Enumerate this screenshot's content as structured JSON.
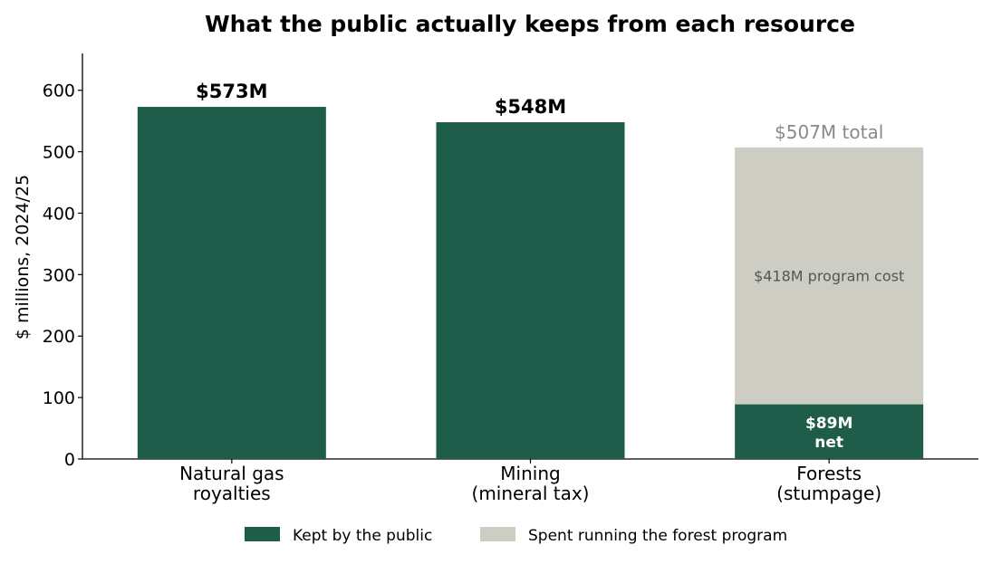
{
  "chart_data": {
    "type": "bar",
    "title": "What the public actually keeps from each resource",
    "ylabel": "$ millions, 2024/25",
    "xlabel": "",
    "ylim": [
      0,
      660
    ],
    "yticks": [
      0,
      100,
      200,
      300,
      400,
      500,
      600
    ],
    "grid": false,
    "categories": [
      [
        "Natural gas",
        "royalties"
      ],
      [
        "Mining",
        "(mineral tax)"
      ],
      [
        "Forests",
        "(stumpage)"
      ]
    ],
    "series": [
      {
        "name": "Kept by the public",
        "color": "#1e5d4a",
        "values": [
          573,
          548,
          89
        ]
      },
      {
        "name": "Spent running the forest program",
        "color": "#cdcdc3",
        "values": [
          0,
          0,
          418
        ]
      }
    ],
    "annotations": {
      "bar_labels": [
        "$573M",
        "$548M",
        "$507M total"
      ],
      "forest_cost_label": "$418M program cost",
      "forest_net_label": [
        "$89M",
        "net"
      ]
    },
    "legend": {
      "position": "bottom-center",
      "entries": [
        "Kept by the public",
        "Spent running the forest program"
      ]
    }
  }
}
